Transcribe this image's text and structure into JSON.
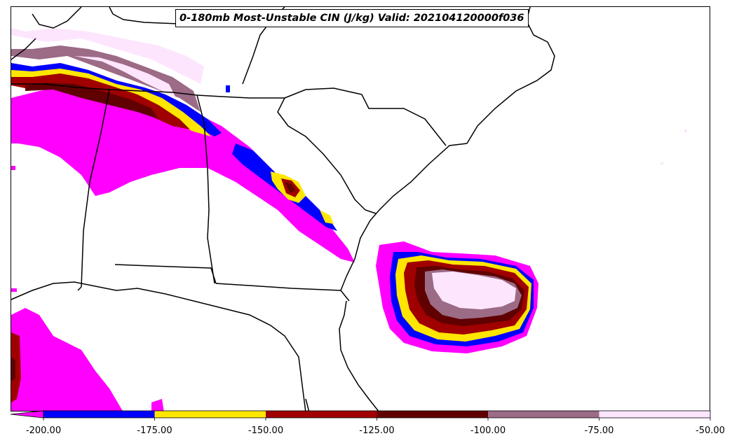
{
  "title": "0-180mb Most-Unstable CIN (J/kg) Valid: 202104120000f036",
  "colorbar": {
    "ticks": [
      "-200.00",
      "-175.00",
      "-150.00",
      "-125.00",
      "-100.00",
      "-75.00",
      "-50.00"
    ],
    "bins": [
      {
        "from": -200,
        "to": -175,
        "color": "#0000ff"
      },
      {
        "from": -175,
        "to": -150,
        "color": "#ffe600"
      },
      {
        "from": -150,
        "to": -125,
        "color": "#a00000"
      },
      {
        "from": -125,
        "to": -100,
        "color": "#600000"
      },
      {
        "from": -100,
        "to": -75,
        "color": "#9c6b86"
      },
      {
        "from": -75,
        "to": -50,
        "color": "#fde6fd"
      }
    ],
    "extend_min_color": "#ff00ff"
  },
  "colors": {
    "magenta": "#ff00ff",
    "blue": "#0000ff",
    "yellow": "#ffe600",
    "red": "#a00000",
    "darkred": "#600000",
    "mauve": "#9c6b86",
    "pink": "#fde6fd"
  }
}
